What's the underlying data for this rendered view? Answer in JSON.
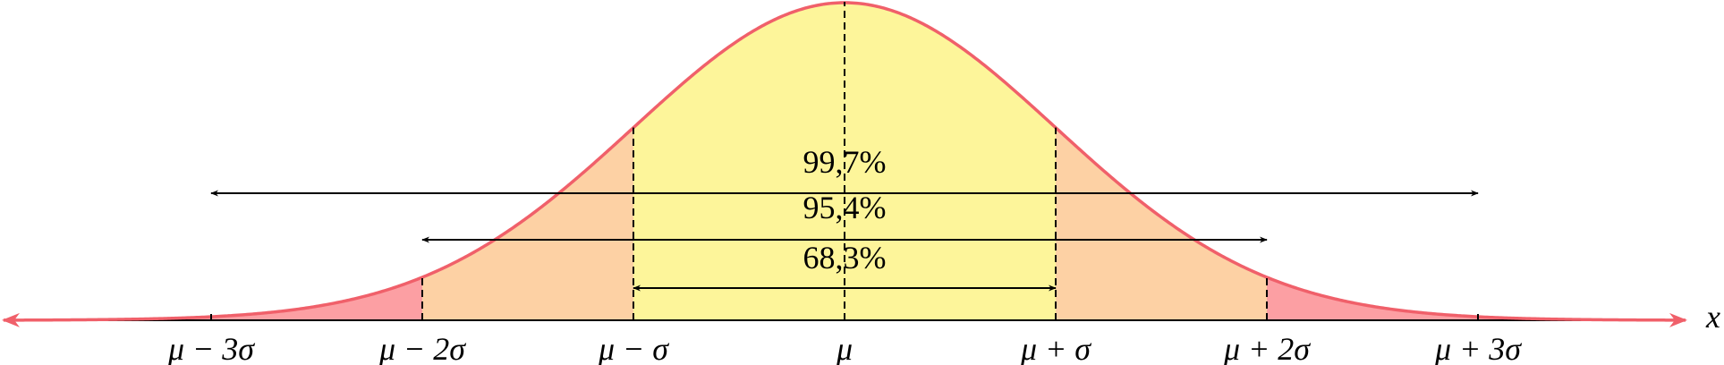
{
  "x_axis": {
    "label": "x",
    "ticks": [
      "μ − 3σ",
      "μ − 2σ",
      "μ − σ",
      "μ",
      "μ + σ",
      "μ + 2σ",
      "μ + 3σ"
    ]
  },
  "intervals": [
    {
      "label": "99,7%"
    },
    {
      "label": "95,4%"
    },
    {
      "label": "68,3%"
    }
  ]
}
